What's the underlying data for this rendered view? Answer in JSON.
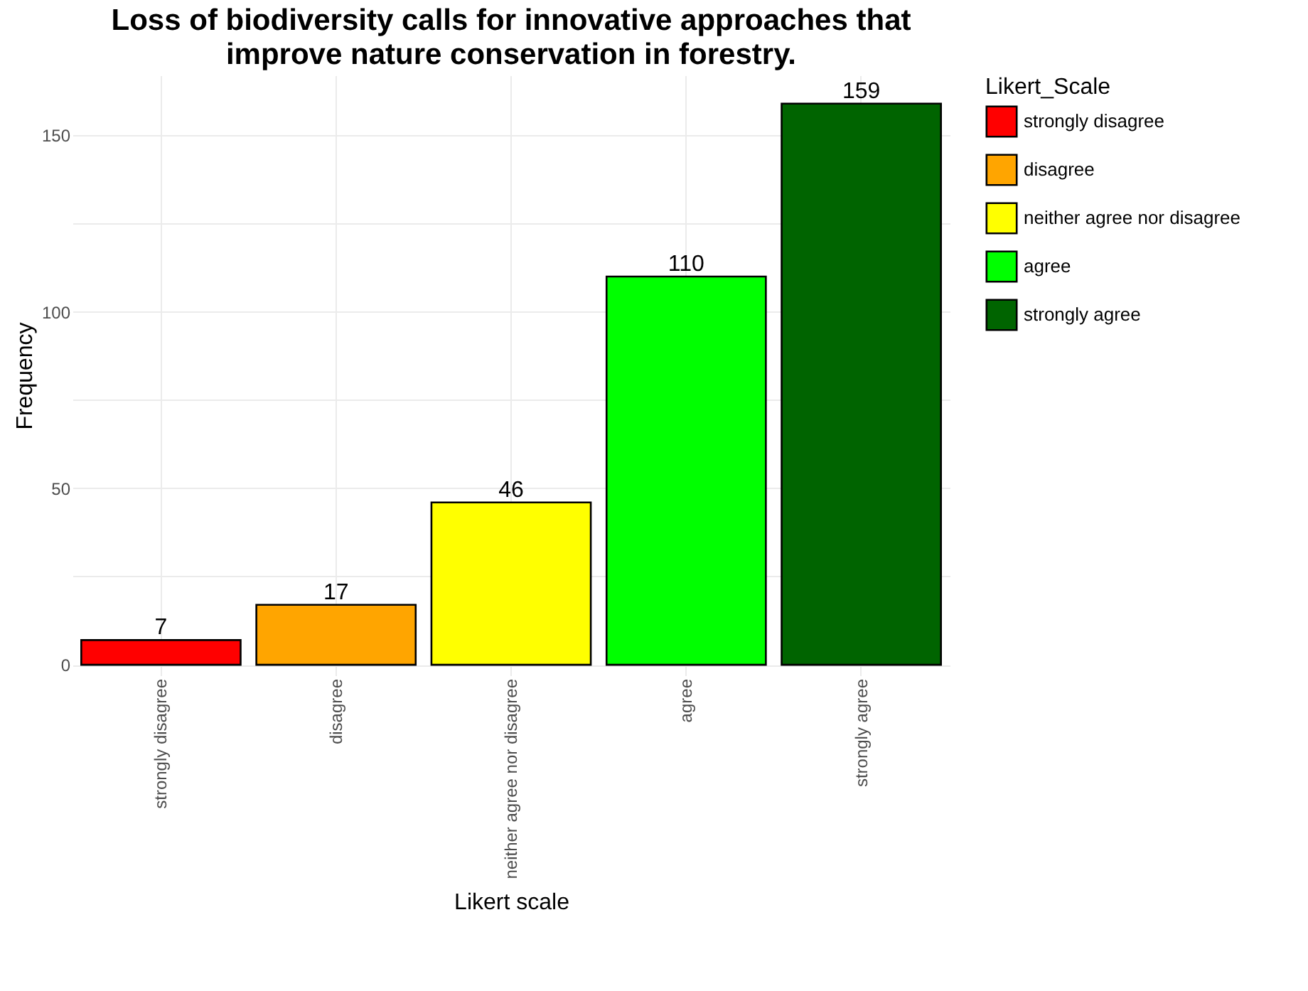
{
  "chart_data": {
    "type": "bar",
    "title": "Loss of biodiversity calls for innovative approaches that improve nature conservation in forestry.",
    "xlabel": "Likert scale",
    "ylabel": "Frequency",
    "legend_title": "Likert_Scale",
    "categories": [
      "strongly disagree",
      "disagree",
      "neither agree nor disagree",
      "agree",
      "strongly agree"
    ],
    "series": [
      {
        "name": "strongly disagree",
        "color": "#ff0000",
        "values": [
          7,
          null,
          null,
          null,
          null
        ]
      },
      {
        "name": "disagree",
        "color": "#ffa500",
        "values": [
          null,
          17,
          null,
          null,
          null
        ]
      },
      {
        "name": "neither agree nor disagree",
        "color": "#ffff00",
        "values": [
          null,
          null,
          46,
          null,
          null
        ]
      },
      {
        "name": "agree",
        "color": "#00ff00",
        "values": [
          null,
          null,
          null,
          110,
          null
        ]
      },
      {
        "name": "strongly agree",
        "color": "#006400",
        "values": [
          null,
          null,
          null,
          null,
          159
        ]
      }
    ],
    "ylim": [
      -3,
      167
    ],
    "yticks": [
      0,
      {
        "value": 25,
        "label": null
      },
      50,
      {
        "value": 75,
        "label": null
      },
      100,
      {
        "value": 125,
        "label": null
      },
      150
    ],
    "grid": true,
    "legend": "right",
    "data_labels": true
  }
}
